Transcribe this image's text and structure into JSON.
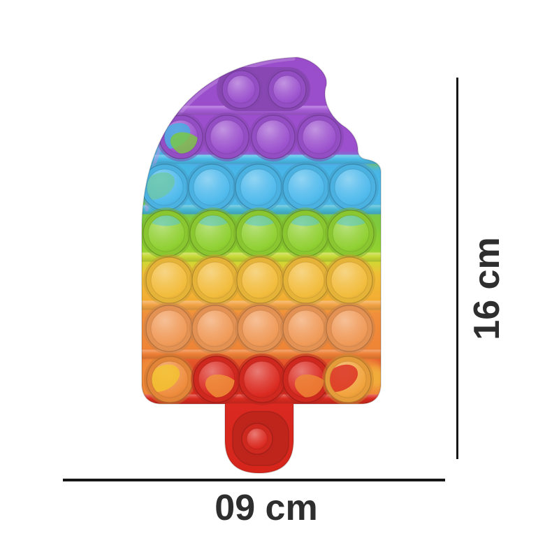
{
  "annotations": {
    "height": "16 cm",
    "width": "09 cm"
  },
  "style": {
    "line_color": "#161616",
    "label_color": "#2e2e2e",
    "background": "#ffffff"
  },
  "toy": {
    "description_rows": 8,
    "band_stops": [
      [
        82,
        "#9a4dca"
      ],
      [
        215,
        "#9c50cd"
      ],
      [
        238,
        "#48b5e8"
      ],
      [
        292,
        "#4cb9e9"
      ],
      [
        312,
        "#7fca3c"
      ],
      [
        358,
        "#92d231"
      ],
      [
        374,
        "#cfd934"
      ],
      [
        392,
        "#f0bd36"
      ],
      [
        430,
        "#f2ad33"
      ],
      [
        450,
        "#f08e3c"
      ],
      [
        498,
        "#ef8536"
      ],
      [
        515,
        "#e55a2b"
      ],
      [
        540,
        "#dd3a22"
      ],
      [
        575,
        "#d92920"
      ],
      [
        677,
        "#d6261c"
      ]
    ],
    "ridge_colors": [
      "#a55cd6",
      "#4bbbe8",
      "#49b9d4",
      "#c6d934",
      "#f2a345",
      "#ee7f36",
      "#da2b20"
    ],
    "accents": {
      "cyan": "#46b6e2",
      "green": "#7cc93e",
      "orange": "#ef8c3a",
      "gold": "#f4c43a"
    },
    "rows": [
      {
        "name": "row-1-purple",
        "bubble_colors": [
          "#9c52ce",
          "#9c52ce"
        ]
      },
      {
        "name": "row-2-purple",
        "bubble_colors": [
          "#9c52ce",
          "#9c52ce",
          "#9c52ce",
          "#9c52ce"
        ],
        "marble": {
          "0": [
            "#42b0e4",
            "#7cc93e"
          ]
        }
      },
      {
        "name": "row-3-blue",
        "bubble_colors": [
          "#4fbaec",
          "#4fbaec",
          "#4fbaec",
          "#4fbaec",
          "#4fbaec"
        ],
        "marble": {
          "0": [
            "#6cc7a8"
          ]
        }
      },
      {
        "name": "row-4-green",
        "bubble_colors": [
          "#90d032",
          "#90d032",
          "#90d032",
          "#90d032",
          "#90d032"
        ],
        "top_tint": "#4ec4dc"
      },
      {
        "name": "row-5-yellow",
        "bubble_colors": [
          "#f2bc3c",
          "#f2bc3c",
          "#f2bc3c",
          "#f2bc3c",
          "#f2bc3c"
        ]
      },
      {
        "name": "row-6-orange",
        "bubble_colors": [
          "#f09a58",
          "#f09a58",
          "#f09a58",
          "#f09a58",
          "#f09a58"
        ]
      },
      {
        "name": "row-7-red",
        "bubble_colors": [
          "#ef8c3c",
          "#da2a20",
          "#da2a20",
          "#da2a20",
          "#f1a33c"
        ],
        "marble": {
          "0": [
            "#f4c42e"
          ],
          "1": [
            "#f0953a"
          ],
          "3": [
            "#ef8a36"
          ],
          "4": [
            "#da2a20"
          ]
        }
      },
      {
        "name": "stick-bubble",
        "bubble_colors": [
          "#da2a20"
        ]
      }
    ]
  }
}
